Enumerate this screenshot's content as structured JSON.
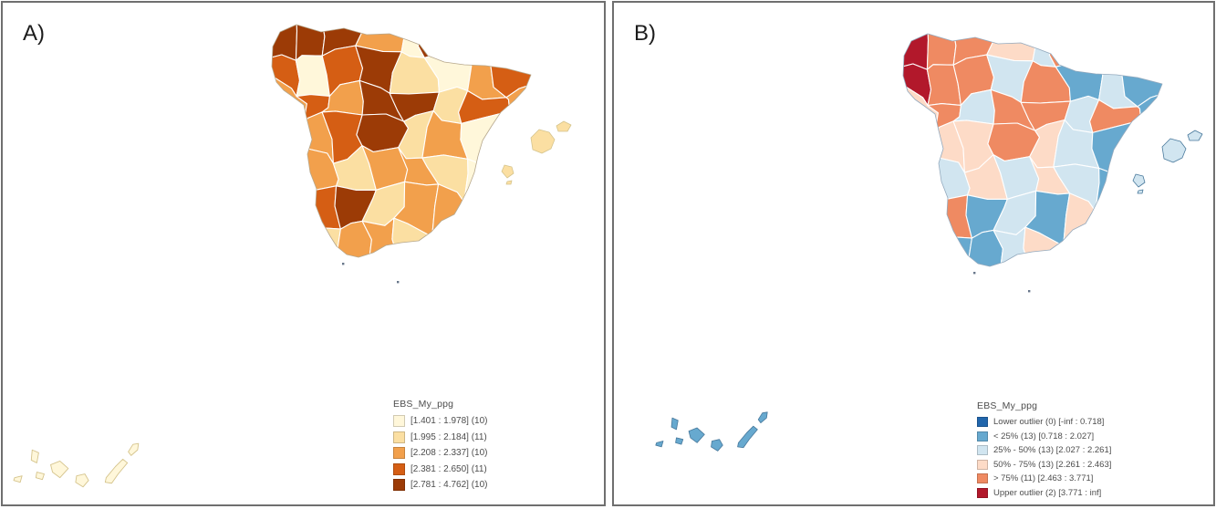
{
  "figure": {
    "panels": [
      {
        "label": "A)",
        "legend": {
          "title": "EBS_My_ppg",
          "items": [
            {
              "color": "#FFF7DA",
              "label": "[1.401 : 1.978] (10)"
            },
            {
              "color": "#FBDFA2",
              "label": "[1.995 : 2.184] (11)"
            },
            {
              "color": "#F2A04C",
              "label": "[2.208 : 2.337] (10)"
            },
            {
              "color": "#D55E14",
              "label": "[2.381 : 2.650] (11)"
            },
            {
              "color": "#9C3B06",
              "label": "[2.781 : 4.762] (10)"
            }
          ]
        },
        "map": {
          "cell_classes": [
            [
              4,
              4,
              4,
              2,
              0,
              4,
              1,
              1
            ],
            [
              3,
              0,
              3,
              4,
              1,
              0,
              2,
              3
            ],
            [
              2,
              3,
              2,
              4,
              4,
              1,
              3,
              2
            ],
            [
              2,
              2,
              3,
              4,
              1,
              2,
              0,
              0
            ],
            [
              3,
              2,
              1,
              2,
              2,
              1,
              0,
              1
            ],
            [
              1,
              3,
              4,
              1,
              2,
              2,
              1,
              1
            ],
            [
              0,
              1,
              2,
              2,
              1,
              2,
              1,
              0
            ]
          ],
          "balearic_class": 1,
          "canary_class": 0
        }
      },
      {
        "label": "B)",
        "legend": {
          "title": "EBS_My_ppg",
          "items": [
            {
              "color": "#2166AC",
              "label": "Lower outlier (0) [-inf : 0.718]"
            },
            {
              "color": "#67A9CF",
              "label": "< 25% (13) [0.718 : 2.027]"
            },
            {
              "color": "#D1E5F0",
              "label": "25% - 50% (13) [2.027 : 2.261]"
            },
            {
              "color": "#FDDBC7",
              "label": "50% - 75% (13) [2.261 : 2.463]"
            },
            {
              "color": "#EF8A62",
              "label": "> 75% (11) [2.463 : 3.771]"
            },
            {
              "color": "#B2182B",
              "label": "Upper outlier (2) [3.771 : inf]"
            }
          ]
        },
        "map": {
          "cell_classes": [
            [
              5,
              4,
              4,
              3,
              2,
              4,
              1,
              1
            ],
            [
              5,
              4,
              4,
              2,
              4,
              1,
              2,
              1
            ],
            [
              3,
              4,
              2,
              4,
              4,
              2,
              4,
              1
            ],
            [
              3,
              3,
              3,
              4,
              3,
              2,
              1,
              1
            ],
            [
              3,
              2,
              3,
              2,
              3,
              2,
              1,
              2
            ],
            [
              3,
              4,
              1,
              2,
              1,
              3,
              2,
              1
            ],
            [
              2,
              1,
              1,
              2,
              3,
              1,
              2,
              2
            ]
          ],
          "balearic_class": 2,
          "canary_class": 1
        }
      }
    ]
  },
  "chart_data": [
    {
      "type": "choropleth-map",
      "panel": "A",
      "title": "EBS_My_ppg",
      "area": "Spain provinces (mainland, Balearic Islands, Canary Islands)",
      "legend_position": "bottom-right",
      "classes": [
        {
          "range": "[1.401 : 1.978]",
          "count": 10,
          "color": "#FFF7DA"
        },
        {
          "range": "[1.995 : 2.184]",
          "count": 11,
          "color": "#FBDFA2"
        },
        {
          "range": "[2.208 : 2.337]",
          "count": 10,
          "color": "#F2A04C"
        },
        {
          "range": "[2.381 : 2.650]",
          "count": 11,
          "color": "#D55E14"
        },
        {
          "range": "[2.781 : 4.762]",
          "count": 10,
          "color": "#9C3B06"
        }
      ]
    },
    {
      "type": "choropleth-map",
      "panel": "B",
      "title": "EBS_My_ppg",
      "area": "Spain provinces (mainland, Balearic Islands, Canary Islands)",
      "legend_position": "bottom-right",
      "classes": [
        {
          "label": "Lower outlier",
          "count": 0,
          "range": "[-inf : 0.718]",
          "color": "#2166AC"
        },
        {
          "label": "< 25%",
          "count": 13,
          "range": "[0.718 : 2.027]",
          "color": "#67A9CF"
        },
        {
          "label": "25% - 50%",
          "count": 13,
          "range": "[2.027 : 2.261]",
          "color": "#D1E5F0"
        },
        {
          "label": "50% - 75%",
          "count": 13,
          "range": "[2.261 : 2.463]",
          "color": "#FDDBC7"
        },
        {
          "label": "> 75%",
          "count": 11,
          "range": "[2.463 : 3.771]",
          "color": "#EF8A62"
        },
        {
          "label": "Upper outlier",
          "count": 2,
          "range": "[3.771 : inf]",
          "color": "#B2182B"
        }
      ]
    }
  ]
}
